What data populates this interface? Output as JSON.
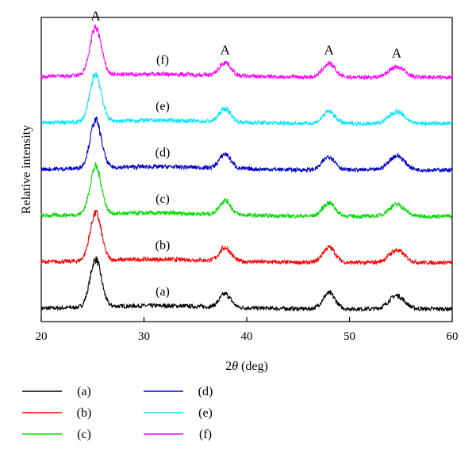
{
  "chart_data": {
    "type": "line",
    "title": "",
    "xlabel": "2θ (deg)",
    "ylabel": "Relative intensity",
    "xlim": [
      20,
      60
    ],
    "xticks": [
      20,
      30,
      40,
      50,
      60
    ],
    "yticks_shown": false,
    "grid": false,
    "legend_position": "below-left",
    "peaks": [
      {
        "label": "A",
        "x": 25.3
      },
      {
        "label": "A",
        "x": 37.9
      },
      {
        "label": "A",
        "x": 48.0
      },
      {
        "label": "A",
        "x": 54.6
      }
    ],
    "series": [
      {
        "name": "(a)",
        "color": "#000000",
        "baseline": 0.0,
        "peak_heights": [
          1.0,
          0.28,
          0.33,
          0.28
        ]
      },
      {
        "name": "(b)",
        "color": "#ff0000",
        "baseline": 1.0,
        "peak_heights": [
          1.0,
          0.28,
          0.32,
          0.26
        ]
      },
      {
        "name": "(c)",
        "color": "#00dd00",
        "baseline": 2.0,
        "peak_heights": [
          1.0,
          0.3,
          0.28,
          0.25
        ]
      },
      {
        "name": "(d)",
        "color": "#0000cc",
        "baseline": 3.0,
        "peak_heights": [
          1.0,
          0.3,
          0.28,
          0.3
        ]
      },
      {
        "name": "(e)",
        "color": "#00e5ff",
        "baseline": 4.0,
        "peak_heights": [
          1.0,
          0.28,
          0.25,
          0.25
        ]
      },
      {
        "name": "(f)",
        "color": "#ff00ff",
        "baseline": 5.0,
        "peak_heights": [
          1.0,
          0.28,
          0.28,
          0.22
        ]
      }
    ]
  }
}
